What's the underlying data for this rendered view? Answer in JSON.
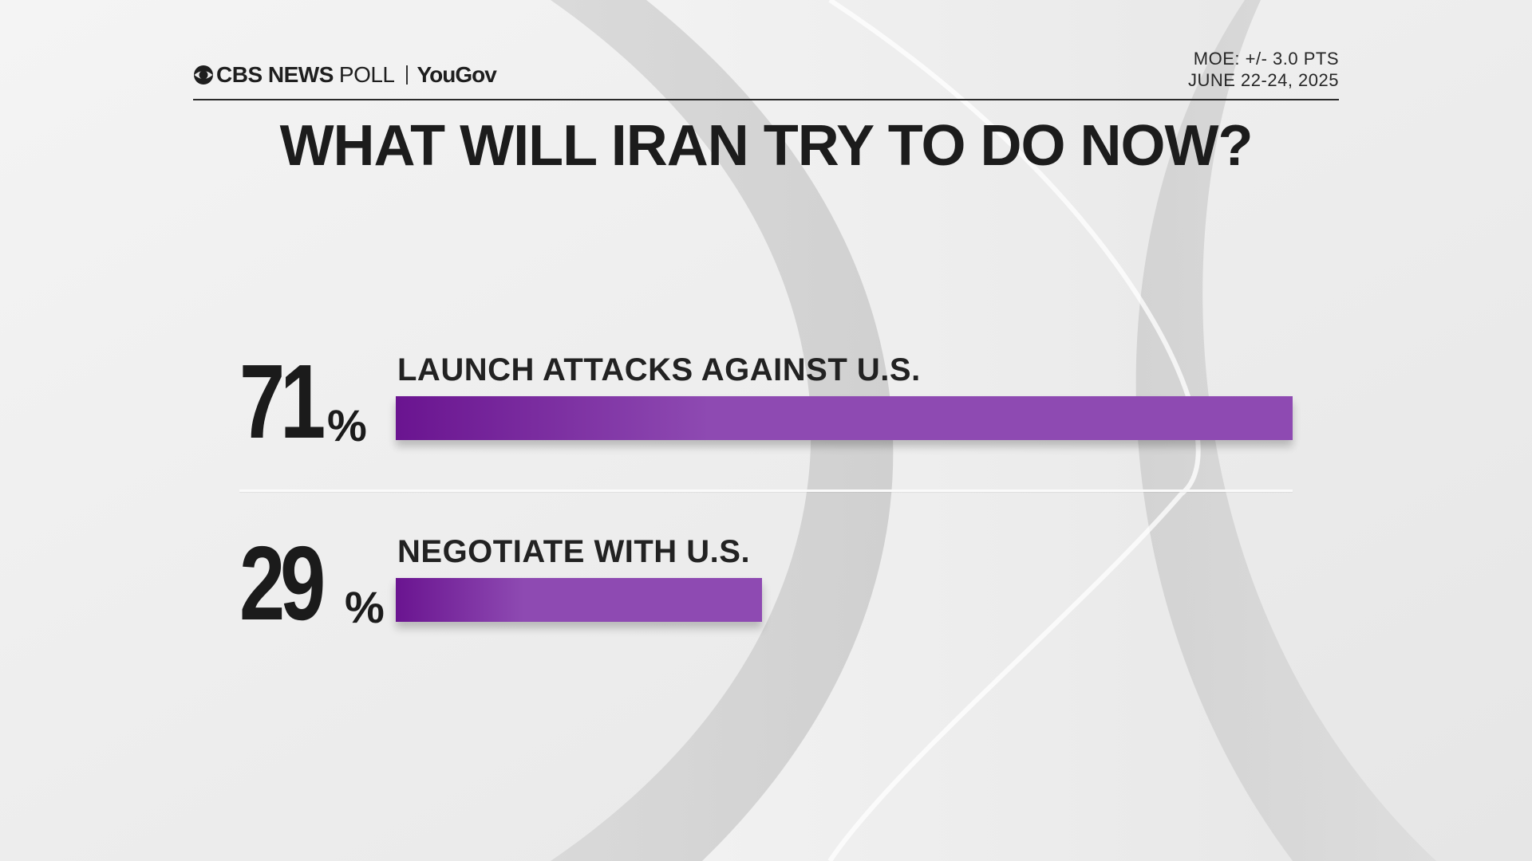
{
  "header": {
    "brand_main": "CBS NEWS",
    "brand_poll": "POLL",
    "brand_partner": "YouGov",
    "moe": "MOE: +/- 3.0 PTS",
    "dates": "JUNE 22-24, 2025"
  },
  "chart_data": {
    "type": "bar",
    "title": "WHAT WILL IRAN TRY TO DO NOW?",
    "orientation": "horizontal",
    "categories": [
      "LAUNCH ATTACKS AGAINST U.S.",
      "NEGOTIATE WITH U.S."
    ],
    "values": [
      71,
      29
    ],
    "value_labels": [
      "71",
      "29"
    ],
    "unit": "%",
    "xlim": [
      0,
      71
    ],
    "bar_color": "#8e4ab2",
    "bar_color_dark": "#6a1490"
  }
}
